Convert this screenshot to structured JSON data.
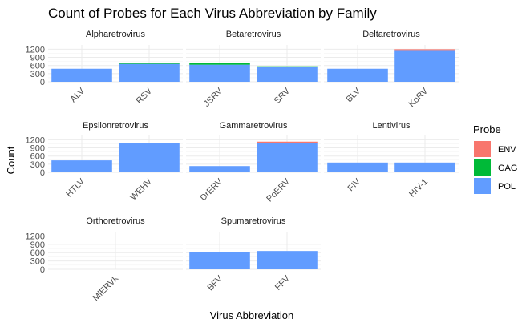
{
  "chart_data": {
    "type": "bar",
    "stacked": true,
    "title": "Count of Probes for Each Virus Abbreviation by Family",
    "xlabel": "Virus Abbreviation",
    "ylabel": "Count",
    "ylim": [
      0,
      1300
    ],
    "yticks": [
      0,
      300,
      600,
      900,
      1200
    ],
    "grid": true,
    "legend": {
      "title": "Probe",
      "position": "right",
      "entries": [
        {
          "name": "ENV",
          "color": "#F8766D"
        },
        {
          "name": "GAG",
          "color": "#00BA38"
        },
        {
          "name": "POL",
          "color": "#619CFF"
        }
      ]
    },
    "facets": [
      {
        "name": "Alpharetrovirus",
        "bars": [
          {
            "x": "ALV",
            "ENV": 0,
            "GAG": 0,
            "POL": 480
          },
          {
            "x": "RSV",
            "ENV": 0,
            "GAG": 30,
            "POL": 660
          }
        ]
      },
      {
        "name": "Betaretrovirus",
        "bars": [
          {
            "x": "JSRV",
            "ENV": 0,
            "GAG": 70,
            "POL": 630
          },
          {
            "x": "SRV",
            "ENV": 0,
            "GAG": 30,
            "POL": 540
          }
        ]
      },
      {
        "name": "Deltaretrovirus",
        "bars": [
          {
            "x": "BLV",
            "ENV": 0,
            "GAG": 0,
            "POL": 480
          },
          {
            "x": "KoRV",
            "ENV": 60,
            "GAG": 0,
            "POL": 1140
          }
        ]
      },
      {
        "name": "Epsilonretrovirus",
        "bars": [
          {
            "x": "HTLV",
            "ENV": 0,
            "GAG": 0,
            "POL": 440
          },
          {
            "x": "WEHV",
            "ENV": 0,
            "GAG": 0,
            "POL": 1090
          }
        ]
      },
      {
        "name": "Gammaretrovirus",
        "bars": [
          {
            "x": "DrERV",
            "ENV": 0,
            "GAG": 0,
            "POL": 230
          },
          {
            "x": "PoERV",
            "ENV": 60,
            "GAG": 0,
            "POL": 1070
          }
        ]
      },
      {
        "name": "Lentivirus",
        "bars": [
          {
            "x": "FIV",
            "ENV": 0,
            "GAG": 0,
            "POL": 360
          },
          {
            "x": "HIV-1",
            "ENV": 0,
            "GAG": 0,
            "POL": 360
          }
        ]
      },
      {
        "name": "Orthoretrovirus",
        "bars": [
          {
            "x": "MlERVk",
            "ENV": 0,
            "GAG": 0,
            "POL": 0
          }
        ]
      },
      {
        "name": "Spumaretrovirus",
        "bars": [
          {
            "x": "BFV",
            "ENV": 0,
            "GAG": 0,
            "POL": 620
          },
          {
            "x": "FFV",
            "ENV": 0,
            "GAG": 0,
            "POL": 660
          }
        ]
      }
    ]
  }
}
